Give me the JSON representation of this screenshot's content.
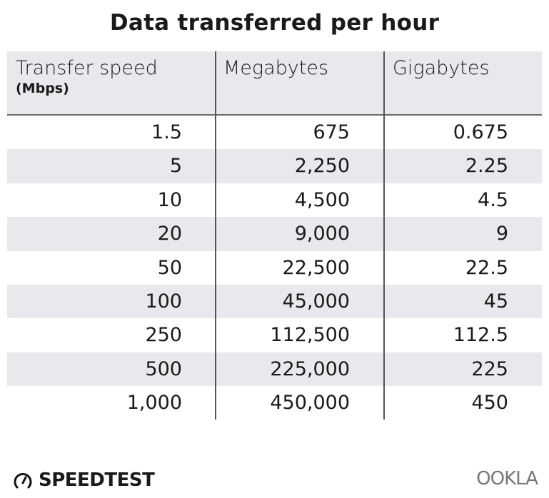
{
  "chart_data": {
    "type": "table",
    "title": "Data transferred per hour",
    "columns": [
      {
        "label": "Transfer speed",
        "sublabel": "(Mbps)"
      },
      {
        "label": "Megabytes"
      },
      {
        "label": "Gigabytes"
      }
    ],
    "rows": [
      [
        "1.5",
        "675",
        "0.675"
      ],
      [
        "5",
        "2,250",
        "2.25"
      ],
      [
        "10",
        "4,500",
        "4.5"
      ],
      [
        "20",
        "9,000",
        "9"
      ],
      [
        "50",
        "22,500",
        "22.5"
      ],
      [
        "100",
        "45,000",
        "45"
      ],
      [
        "250",
        "112,500",
        "112.5"
      ],
      [
        "500",
        "225,000",
        "225"
      ],
      [
        "1,000",
        "450,000",
        "450"
      ]
    ],
    "stripe_color": "#e9e9ed"
  },
  "footer": {
    "speedtest_logo": "SPEEDTEST",
    "ookla_logo": "OOKLA",
    "speedtest_icon": "gauge-icon"
  }
}
